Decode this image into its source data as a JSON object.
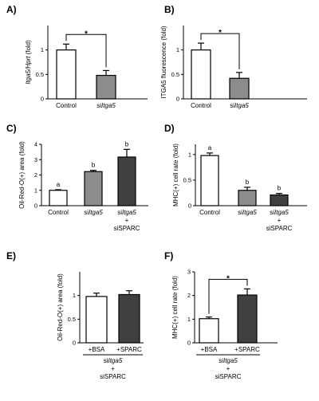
{
  "chart_data": [
    {
      "id": "A",
      "type": "bar",
      "panel_label": "A)",
      "ylabel": "Itga5/Hprt (fold)",
      "ylim": [
        0,
        1.5
      ],
      "ytick_labels": [
        "0",
        "0.5",
        "1"
      ],
      "categories": [
        "Control",
        "siItga5"
      ],
      "category_labels": [
        [
          "Control"
        ],
        [
          "siItga5"
        ]
      ],
      "values": [
        1.0,
        0.48
      ],
      "errors": [
        0.12,
        0.1
      ],
      "colors": [
        "#ffffff",
        "#8c8c8c"
      ],
      "significance": "*"
    },
    {
      "id": "B",
      "type": "bar",
      "panel_label": "B)",
      "ylabel": "ITGA5 fluorescence (fold)",
      "ylim": [
        0,
        1.5
      ],
      "ytick_labels": [
        "0",
        "0.5",
        "1"
      ],
      "categories": [
        "Control",
        "siItga5"
      ],
      "category_labels": [
        [
          "Control"
        ],
        [
          "siItga5"
        ]
      ],
      "values": [
        1.0,
        0.42
      ],
      "errors": [
        0.14,
        0.12
      ],
      "colors": [
        "#ffffff",
        "#8c8c8c"
      ],
      "significance": "*"
    },
    {
      "id": "C",
      "type": "bar",
      "panel_label": "C)",
      "ylabel": "Oil-Red-O(+) area (fold)",
      "ylim": [
        0,
        4
      ],
      "ytick_labels": [
        "0",
        "1",
        "2",
        "3",
        "4"
      ],
      "categories": [
        "Control",
        "siItga5",
        "siItga5 + siSPARC"
      ],
      "category_labels": [
        [
          "Control"
        ],
        [
          "siItga5"
        ],
        [
          "siItga5",
          "+",
          "siSPARC"
        ]
      ],
      "values": [
        1.0,
        2.22,
        3.17
      ],
      "errors": [
        0.04,
        0.08,
        0.5
      ],
      "colors": [
        "#ffffff",
        "#8c8c8c",
        "#404040"
      ],
      "group_letters": [
        "a",
        "b",
        "b"
      ]
    },
    {
      "id": "D",
      "type": "bar",
      "panel_label": "D)",
      "ylabel": "MHC(+) cell rate (fold)",
      "ylim": [
        0,
        1.2
      ],
      "ytick_labels": [
        "0",
        "0.5",
        "1"
      ],
      "categories": [
        "Control",
        "siItga5",
        "siItga5 + siSPARC"
      ],
      "category_labels": [
        [
          "Control"
        ],
        [
          "siItga5"
        ],
        [
          "siItga5",
          "+",
          "siSPARC"
        ]
      ],
      "values": [
        0.98,
        0.3,
        0.21
      ],
      "errors": [
        0.05,
        0.06,
        0.03
      ],
      "colors": [
        "#ffffff",
        "#8c8c8c",
        "#404040"
      ],
      "group_letters": [
        "a",
        "b",
        "b"
      ]
    },
    {
      "id": "E",
      "type": "bar",
      "panel_label": "E)",
      "ylabel": "Oil-Red-O(+) area (fold)",
      "ylim": [
        0,
        1.5
      ],
      "ytick_labels": [
        "0",
        "0.5",
        "1"
      ],
      "categories": [
        "+BSA",
        "+SPARC"
      ],
      "category_labels": [
        [
          "+BSA"
        ],
        [
          "+SPARC"
        ]
      ],
      "values": [
        0.98,
        1.02
      ],
      "errors": [
        0.07,
        0.08
      ],
      "colors": [
        "#ffffff",
        "#404040"
      ],
      "group_footer": [
        "siItga5",
        "+",
        "siSPARC"
      ]
    },
    {
      "id": "F",
      "type": "bar",
      "panel_label": "F)",
      "ylabel": "MHC(+) cell rate (fold)",
      "ylim": [
        0,
        3
      ],
      "ytick_labels": [
        "0",
        "1",
        "2",
        "3"
      ],
      "categories": [
        "+BSA",
        "+SPARC"
      ],
      "category_labels": [
        [
          "+BSA"
        ],
        [
          "+SPARC"
        ]
      ],
      "values": [
        1.02,
        2.02
      ],
      "errors": [
        0.07,
        0.26
      ],
      "colors": [
        "#ffffff",
        "#404040"
      ],
      "significance": "*",
      "group_footer": [
        "siItga5",
        "+",
        "siSPARC"
      ]
    }
  ]
}
